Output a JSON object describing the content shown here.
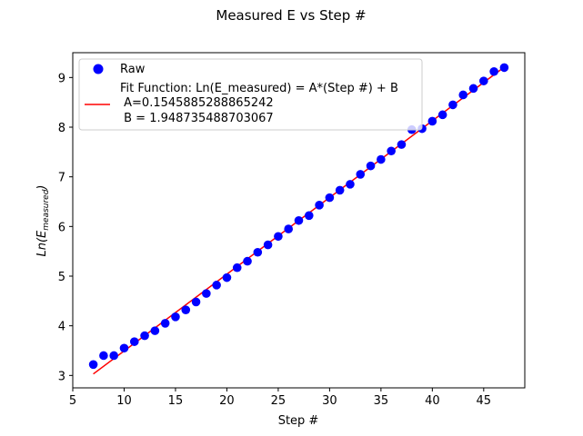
{
  "chart_data": {
    "type": "scatter",
    "title": "Measured E vs Step #",
    "xlabel": "Step #",
    "ylabel_base": "Ln(E",
    "ylabel_sub": "measured",
    "ylabel_close": ")",
    "xlim": [
      5,
      49
    ],
    "ylim": [
      2.75,
      9.5
    ],
    "xticks": [
      5,
      10,
      15,
      20,
      25,
      30,
      35,
      40,
      45
    ],
    "yticks": [
      3,
      4,
      5,
      6,
      7,
      8,
      9
    ],
    "grid": false,
    "legend_position": "top-left",
    "colors": {
      "raw": "#0000ff",
      "fit": "#ff0000"
    },
    "series": [
      {
        "name": "Raw",
        "kind": "scatter",
        "x": [
          7,
          8,
          9,
          10,
          11,
          12,
          13,
          14,
          15,
          16,
          17,
          18,
          19,
          20,
          21,
          22,
          23,
          24,
          25,
          26,
          27,
          28,
          29,
          30,
          31,
          32,
          33,
          34,
          35,
          36,
          37,
          38,
          39,
          40,
          41,
          42,
          43,
          44,
          45,
          46,
          47
        ],
        "y": [
          3.22,
          3.4,
          3.4,
          3.55,
          3.68,
          3.8,
          3.9,
          4.05,
          4.18,
          4.32,
          4.48,
          4.65,
          4.82,
          4.97,
          5.17,
          5.3,
          5.48,
          5.63,
          5.8,
          5.95,
          6.12,
          6.22,
          6.43,
          6.58,
          6.73,
          6.85,
          7.05,
          7.22,
          7.35,
          7.52,
          7.65,
          7.95,
          7.97,
          8.12,
          8.25,
          8.45,
          8.65,
          8.78,
          8.93,
          9.12,
          9.2
        ]
      },
      {
        "name": "Fit Function: Ln(E_measured) = A*(Step #) + B",
        "kind": "line",
        "x": [
          7,
          47
        ],
        "y": [
          3.03,
          9.21
        ],
        "params": [
          " A=0.1545885288865242",
          " B = 1.948735488703067"
        ]
      }
    ]
  }
}
